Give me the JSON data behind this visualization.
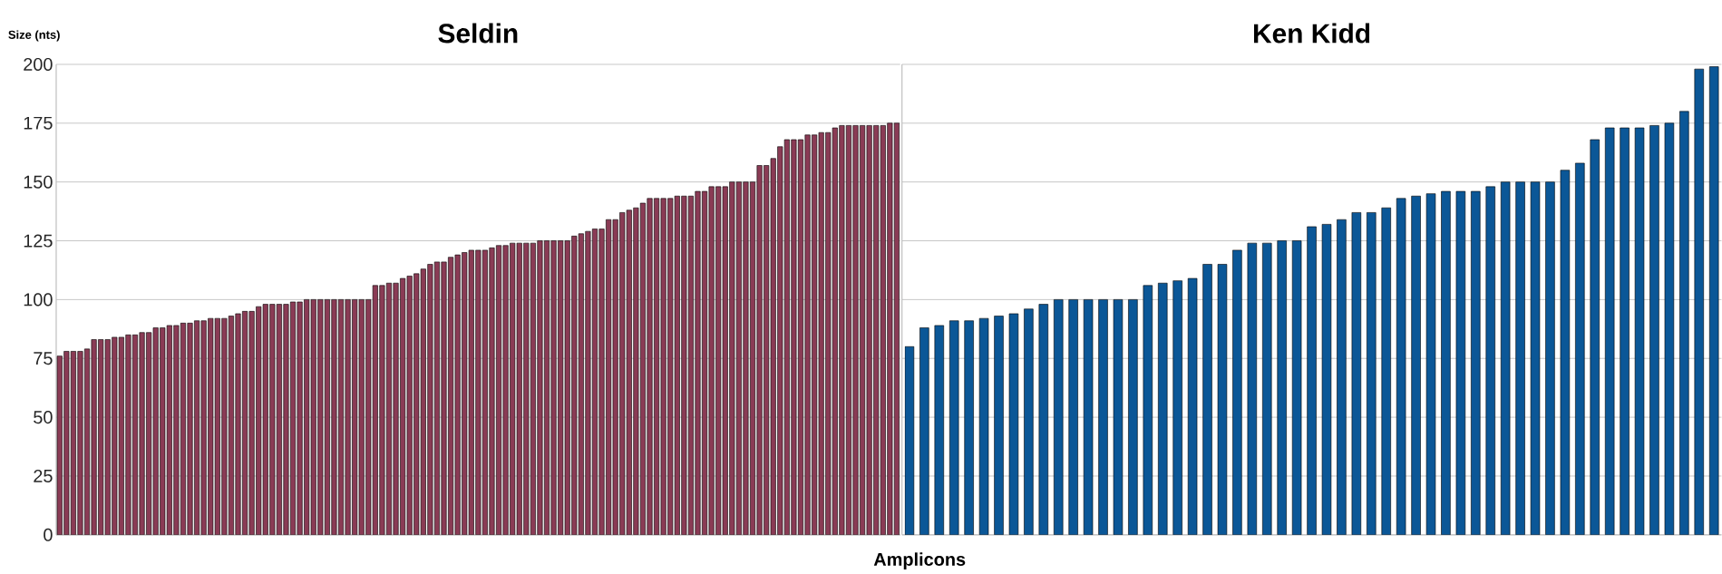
{
  "chart_data": [
    {
      "type": "bar",
      "title": "Seldin",
      "ylabel": "Size (nts)",
      "xlabel": "Amplicons",
      "color": "#8a3b55",
      "ylim": [
        0,
        200
      ],
      "yticks": [
        0,
        25,
        50,
        75,
        100,
        125,
        150,
        175,
        200
      ],
      "grid": "y",
      "categories": [
        null,
        null,
        null,
        null,
        null,
        null,
        null,
        null,
        null,
        null,
        null,
        null,
        null,
        null,
        null,
        null,
        null,
        null,
        null,
        null,
        null,
        null,
        null,
        null,
        null,
        null,
        null,
        null,
        null,
        null,
        null,
        null,
        null,
        null,
        null,
        null,
        null,
        null,
        null,
        null,
        null,
        null,
        null,
        null,
        null,
        null,
        null,
        null,
        null,
        null,
        null,
        null,
        null,
        null,
        null,
        null,
        null,
        null,
        null,
        null,
        null,
        null,
        null,
        null,
        null,
        null,
        null,
        null,
        null,
        null,
        null,
        null,
        null,
        null,
        null,
        null,
        null,
        null,
        null,
        null,
        null,
        null,
        null,
        null,
        null,
        null,
        null,
        null,
        null,
        null,
        null,
        null,
        null,
        null,
        null,
        null,
        null,
        null,
        null,
        null,
        null,
        null,
        null,
        null,
        null,
        null,
        null,
        null,
        null,
        null,
        null,
        null,
        null,
        null,
        null,
        null,
        null,
        null,
        null,
        null,
        null,
        null,
        null
      ],
      "values": [
        76,
        78,
        78,
        78,
        79,
        83,
        83,
        83,
        84,
        84,
        85,
        85,
        86,
        86,
        88,
        88,
        89,
        89,
        90,
        90,
        91,
        91,
        92,
        92,
        92,
        93,
        94,
        95,
        95,
        97,
        98,
        98,
        98,
        98,
        99,
        99,
        100,
        100,
        100,
        100,
        100,
        100,
        100,
        100,
        100,
        100,
        106,
        106,
        107,
        107,
        109,
        110,
        111,
        113,
        115,
        116,
        116,
        118,
        119,
        120,
        121,
        121,
        121,
        122,
        123,
        123,
        124,
        124,
        124,
        124,
        125,
        125,
        125,
        125,
        125,
        127,
        128,
        129,
        130,
        130,
        134,
        134,
        137,
        138,
        139,
        141,
        143,
        143,
        143,
        143,
        144,
        144,
        144,
        146,
        146,
        148,
        148,
        148,
        150,
        150,
        150,
        150,
        157,
        157,
        160,
        165,
        168,
        168,
        168,
        170,
        170,
        171,
        171,
        173,
        174,
        174,
        174,
        174,
        174,
        174,
        174,
        175,
        175
      ]
    },
    {
      "type": "bar",
      "title": "Ken Kidd",
      "color": "#0b5797",
      "ylim": [
        0,
        200
      ],
      "yticks": [
        0,
        25,
        50,
        75,
        100,
        125,
        150,
        175,
        200
      ],
      "grid": "y",
      "tick_labels": false,
      "categories": [
        null,
        null,
        null,
        null,
        null,
        null,
        null,
        null,
        null,
        null,
        null,
        null,
        null,
        null,
        null,
        null,
        null,
        null,
        null,
        null,
        null,
        null,
        null,
        null,
        null,
        null,
        null,
        null,
        null,
        null,
        null,
        null,
        null,
        null,
        null,
        null,
        null,
        null,
        null,
        null,
        null,
        null,
        null,
        null,
        null,
        null,
        null,
        null,
        null,
        null,
        null,
        null,
        null,
        null,
        null
      ],
      "values": [
        80,
        88,
        89,
        91,
        91,
        92,
        93,
        94,
        96,
        98,
        100,
        100,
        100,
        100,
        100,
        100,
        106,
        107,
        108,
        109,
        115,
        115,
        121,
        124,
        124,
        125,
        125,
        131,
        132,
        134,
        137,
        137,
        139,
        143,
        144,
        145,
        146,
        146,
        146,
        148,
        150,
        150,
        150,
        150,
        155,
        158,
        168,
        173,
        173,
        173,
        174,
        175,
        180,
        198,
        199
      ]
    }
  ]
}
